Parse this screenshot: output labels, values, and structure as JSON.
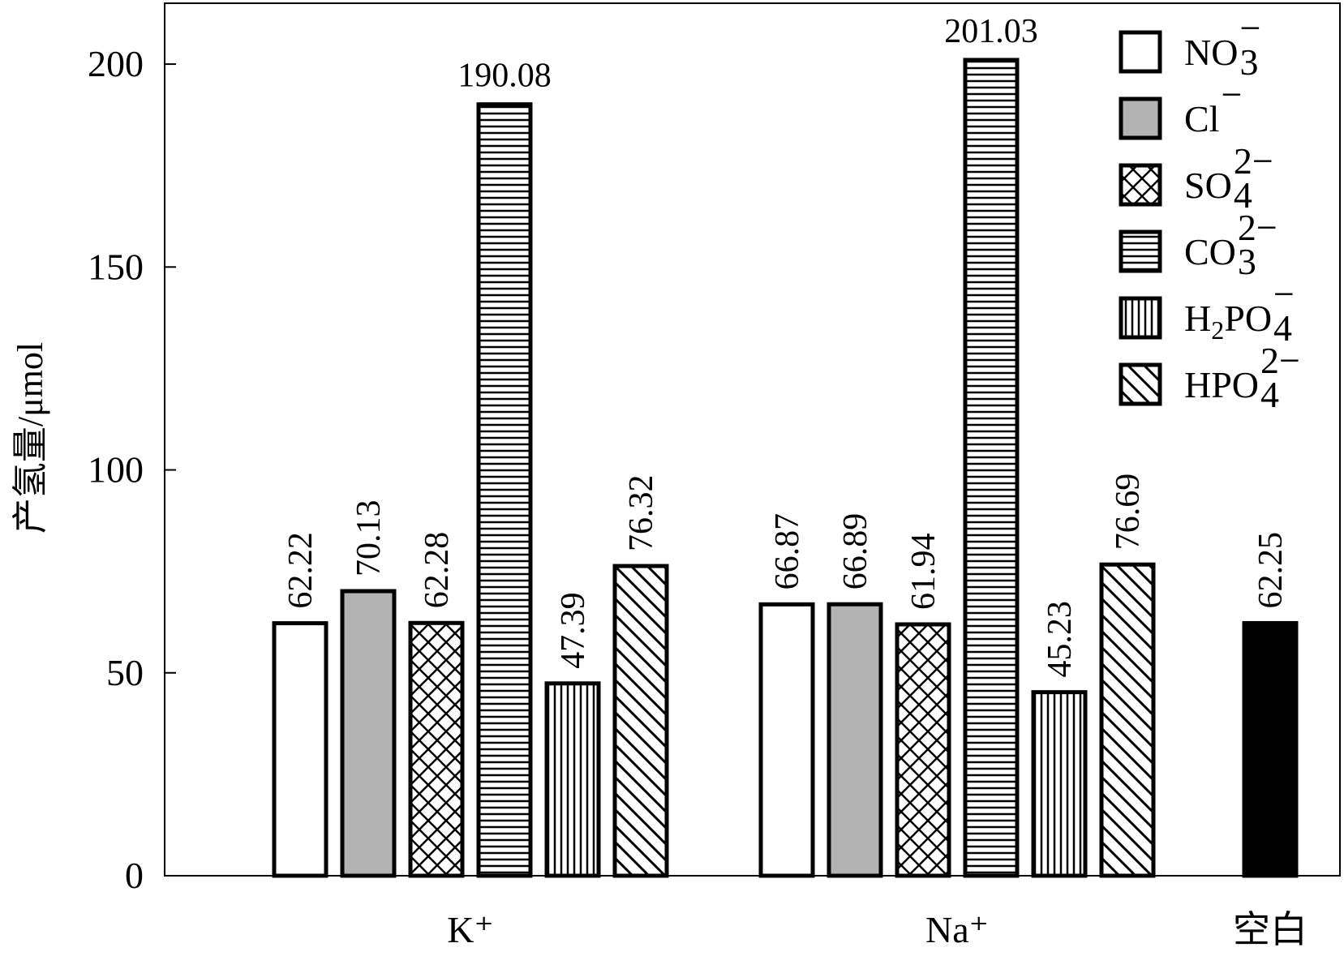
{
  "chart_data": {
    "type": "bar",
    "title": "",
    "xlabel": "",
    "ylabel": "产氢量/μmol",
    "ylim": [
      0,
      215
    ],
    "yticks": [
      0,
      50,
      100,
      150,
      200
    ],
    "grid": false,
    "legend_placement": "top-right",
    "groups": [
      {
        "label": "K⁺",
        "bars": [
          {
            "series": "nitrate",
            "value": 62.22,
            "label": "62.22"
          },
          {
            "series": "chloride",
            "value": 70.13,
            "label": "70.13"
          },
          {
            "series": "sulfate",
            "value": 62.28,
            "label": "62.28"
          },
          {
            "series": "carbonate",
            "value": 190.08,
            "label": "190.08"
          },
          {
            "series": "dihydrogen_phosphate",
            "value": 47.39,
            "label": "47.39"
          },
          {
            "series": "hydrogen_phosphate",
            "value": 76.32,
            "label": "76.32"
          }
        ]
      },
      {
        "label": "Na⁺",
        "bars": [
          {
            "series": "nitrate",
            "value": 66.87,
            "label": "66.87"
          },
          {
            "series": "chloride",
            "value": 66.89,
            "label": "66.89"
          },
          {
            "series": "sulfate",
            "value": 61.94,
            "label": "61.94"
          },
          {
            "series": "carbonate",
            "value": 201.03,
            "label": "201.03"
          },
          {
            "series": "dihydrogen_phosphate",
            "value": 45.23,
            "label": "45.23"
          },
          {
            "series": "hydrogen_phosphate",
            "value": 76.69,
            "label": "76.69"
          }
        ]
      },
      {
        "label": "空白",
        "bars": [
          {
            "series": "blank",
            "value": 62.25,
            "label": "62.25"
          }
        ]
      }
    ],
    "series": [
      {
        "id": "nitrate",
        "fill": "white",
        "color": "#ffffff",
        "legend": {
          "base": "NO",
          "sub": "3",
          "sup": "−"
        }
      },
      {
        "id": "chloride",
        "fill": "gray",
        "color": "#b3b3b3",
        "legend": {
          "base": "Cl",
          "sub": "",
          "sup": "−"
        }
      },
      {
        "id": "sulfate",
        "fill": "crosshatch",
        "color": "#ffffff",
        "legend": {
          "base": "SO",
          "sub": "4",
          "sup": "2−"
        }
      },
      {
        "id": "carbonate",
        "fill": "horizontal-lines",
        "color": "#ffffff",
        "legend": {
          "base": "CO",
          "sub": "3",
          "sup": "2−"
        }
      },
      {
        "id": "dihydrogen_phosphate",
        "fill": "vertical-lines",
        "color": "#ffffff",
        "legend": {
          "base": "H",
          "sub": "2",
          "after": "PO",
          "sub2": "4",
          "sup": "−"
        }
      },
      {
        "id": "hydrogen_phosphate",
        "fill": "diagonal-lines",
        "color": "#ffffff",
        "legend": {
          "base": "HPO",
          "sub": "4",
          "sup": "2−"
        }
      },
      {
        "id": "blank",
        "fill": "black",
        "color": "#000000"
      }
    ]
  }
}
